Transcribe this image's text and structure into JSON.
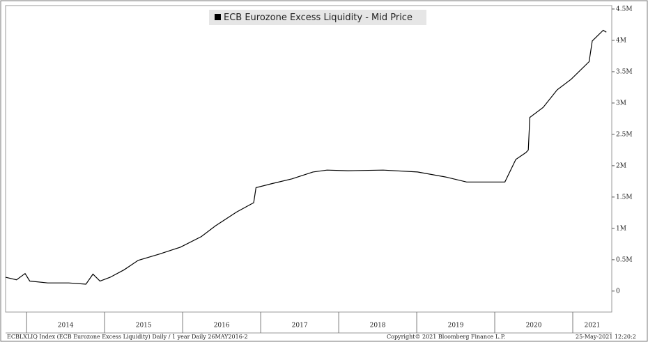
{
  "chart_data": {
    "type": "line",
    "x": [
      2013.73,
      2013.87,
      2013.98,
      2014.04,
      2014.27,
      2014.54,
      2014.76,
      2014.85,
      2014.94,
      2015.07,
      2015.25,
      2015.43,
      2015.7,
      2015.97,
      2016.24,
      2016.42,
      2016.69,
      2016.91,
      2016.94,
      2017.13,
      2017.4,
      2017.67,
      2017.85,
      2018.12,
      2018.57,
      2019.01,
      2019.37,
      2019.64,
      2019.91,
      2020.13,
      2020.27,
      2020.4,
      2020.43,
      2020.45,
      2020.62,
      2020.8,
      2020.98,
      2021.21,
      2021.25,
      2021.39,
      2021.43
    ],
    "series": [
      {
        "name": "ECB Eurozone Excess Liquidity - Mid Price",
        "color": "#000000",
        "values": [
          220000,
          180000,
          280000,
          160000,
          130000,
          130000,
          110000,
          270000,
          160000,
          220000,
          340000,
          490000,
          590000,
          700000,
          870000,
          1040000,
          1260000,
          1410000,
          1650000,
          1710000,
          1790000,
          1900000,
          1930000,
          1920000,
          1930000,
          1900000,
          1820000,
          1740000,
          1740000,
          1740000,
          2100000,
          2210000,
          2250000,
          2770000,
          2930000,
          3210000,
          3380000,
          3660000,
          3990000,
          4160000,
          4130000
        ]
      }
    ],
    "xlim": [
      2013.73,
      2021.5
    ],
    "xticks": [
      2014,
      2015,
      2016,
      2017,
      2018,
      2019,
      2020,
      2021
    ],
    "ylim": [
      -335000,
      4555000
    ],
    "yticks": [
      0,
      {
        "value": 500000,
        "label": "0.5M"
      },
      {
        "value": 1000000,
        "label": "1M"
      },
      {
        "value": 1500000,
        "label": "1.5M"
      },
      {
        "value": 2000000,
        "label": "2M"
      },
      {
        "value": 2500000,
        "label": "2.5M"
      },
      {
        "value": 3000000,
        "label": "3M"
      },
      {
        "value": 3500000,
        "label": "3.5M"
      },
      {
        "value": 4000000,
        "label": "4M"
      },
      {
        "value": 4500000,
        "label": "4.5M"
      }
    ],
    "legend": "top",
    "notes": [
      "ECBLXLIQ Index (ECB Eurozone Excess Liquidity) Daily / 1 year  Daily 26MAY2016-2",
      "Copyright© 2021 Bloomberg Finance L.P.",
      "25-May-2021 12:20:2"
    ]
  }
}
